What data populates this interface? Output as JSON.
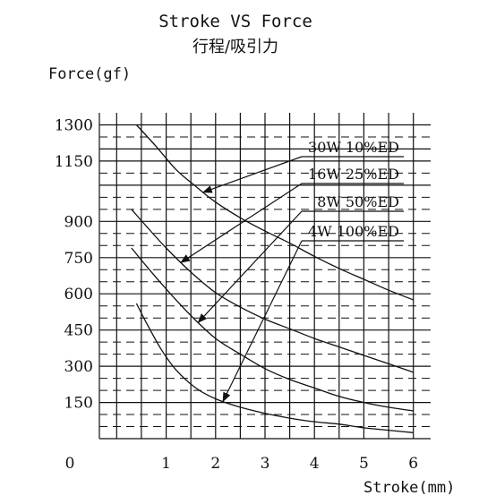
{
  "chart_data": {
    "type": "line",
    "title": "Stroke VS  Force",
    "subtitle": "行程/吸引力",
    "xlabel": "Stroke(mm)",
    "ylabel": "Force(gf)",
    "x_ticks": [
      "0",
      "1",
      "2",
      "3",
      "4",
      "5",
      "6"
    ],
    "y_ticks": [
      "150",
      "300",
      "450",
      "600",
      "750",
      "900",
      "1150",
      "1300"
    ],
    "xlim": [
      -0.35,
      6.35
    ],
    "ylim": [
      0,
      1350
    ],
    "grid": true,
    "legend_placement": "top-right",
    "series": [
      {
        "name": "30W  10%ED",
        "x": [
          0.4,
          0.8,
          1.2,
          1.6,
          2.0,
          2.5,
          3.0,
          3.5,
          4.0,
          4.5,
          5.0,
          5.5,
          6.0
        ],
        "y": [
          1300,
          1210,
          1115,
          1045,
          980,
          915,
          860,
          810,
          755,
          705,
          660,
          615,
          575
        ]
      },
      {
        "name": "16W  25%ED",
        "x": [
          0.3,
          0.6,
          1.0,
          1.5,
          2.0,
          2.5,
          3.0,
          3.5,
          4.0,
          4.5,
          5.0,
          5.5,
          6.0
        ],
        "y": [
          950,
          880,
          790,
          690,
          605,
          545,
          495,
          455,
          415,
          380,
          345,
          310,
          275
        ]
      },
      {
        "name": "8W  50%ED",
        "x": [
          0.3,
          0.6,
          1.0,
          1.5,
          2.0,
          2.5,
          3.0,
          3.5,
          4.0,
          4.5,
          5.0,
          5.5,
          6.0
        ],
        "y": [
          790,
          715,
          620,
          510,
          415,
          350,
          290,
          245,
          210,
          175,
          150,
          130,
          115
        ]
      },
      {
        "name": "4W  100%ED",
        "x": [
          0.4,
          0.6,
          0.9,
          1.2,
          1.6,
          2.0,
          2.5,
          3.0,
          3.5,
          4.0,
          4.5,
          5.0,
          5.5,
          6.0
        ],
        "y": [
          560,
          480,
          370,
          285,
          210,
          165,
          130,
          105,
          85,
          70,
          60,
          45,
          35,
          25
        ]
      }
    ]
  }
}
